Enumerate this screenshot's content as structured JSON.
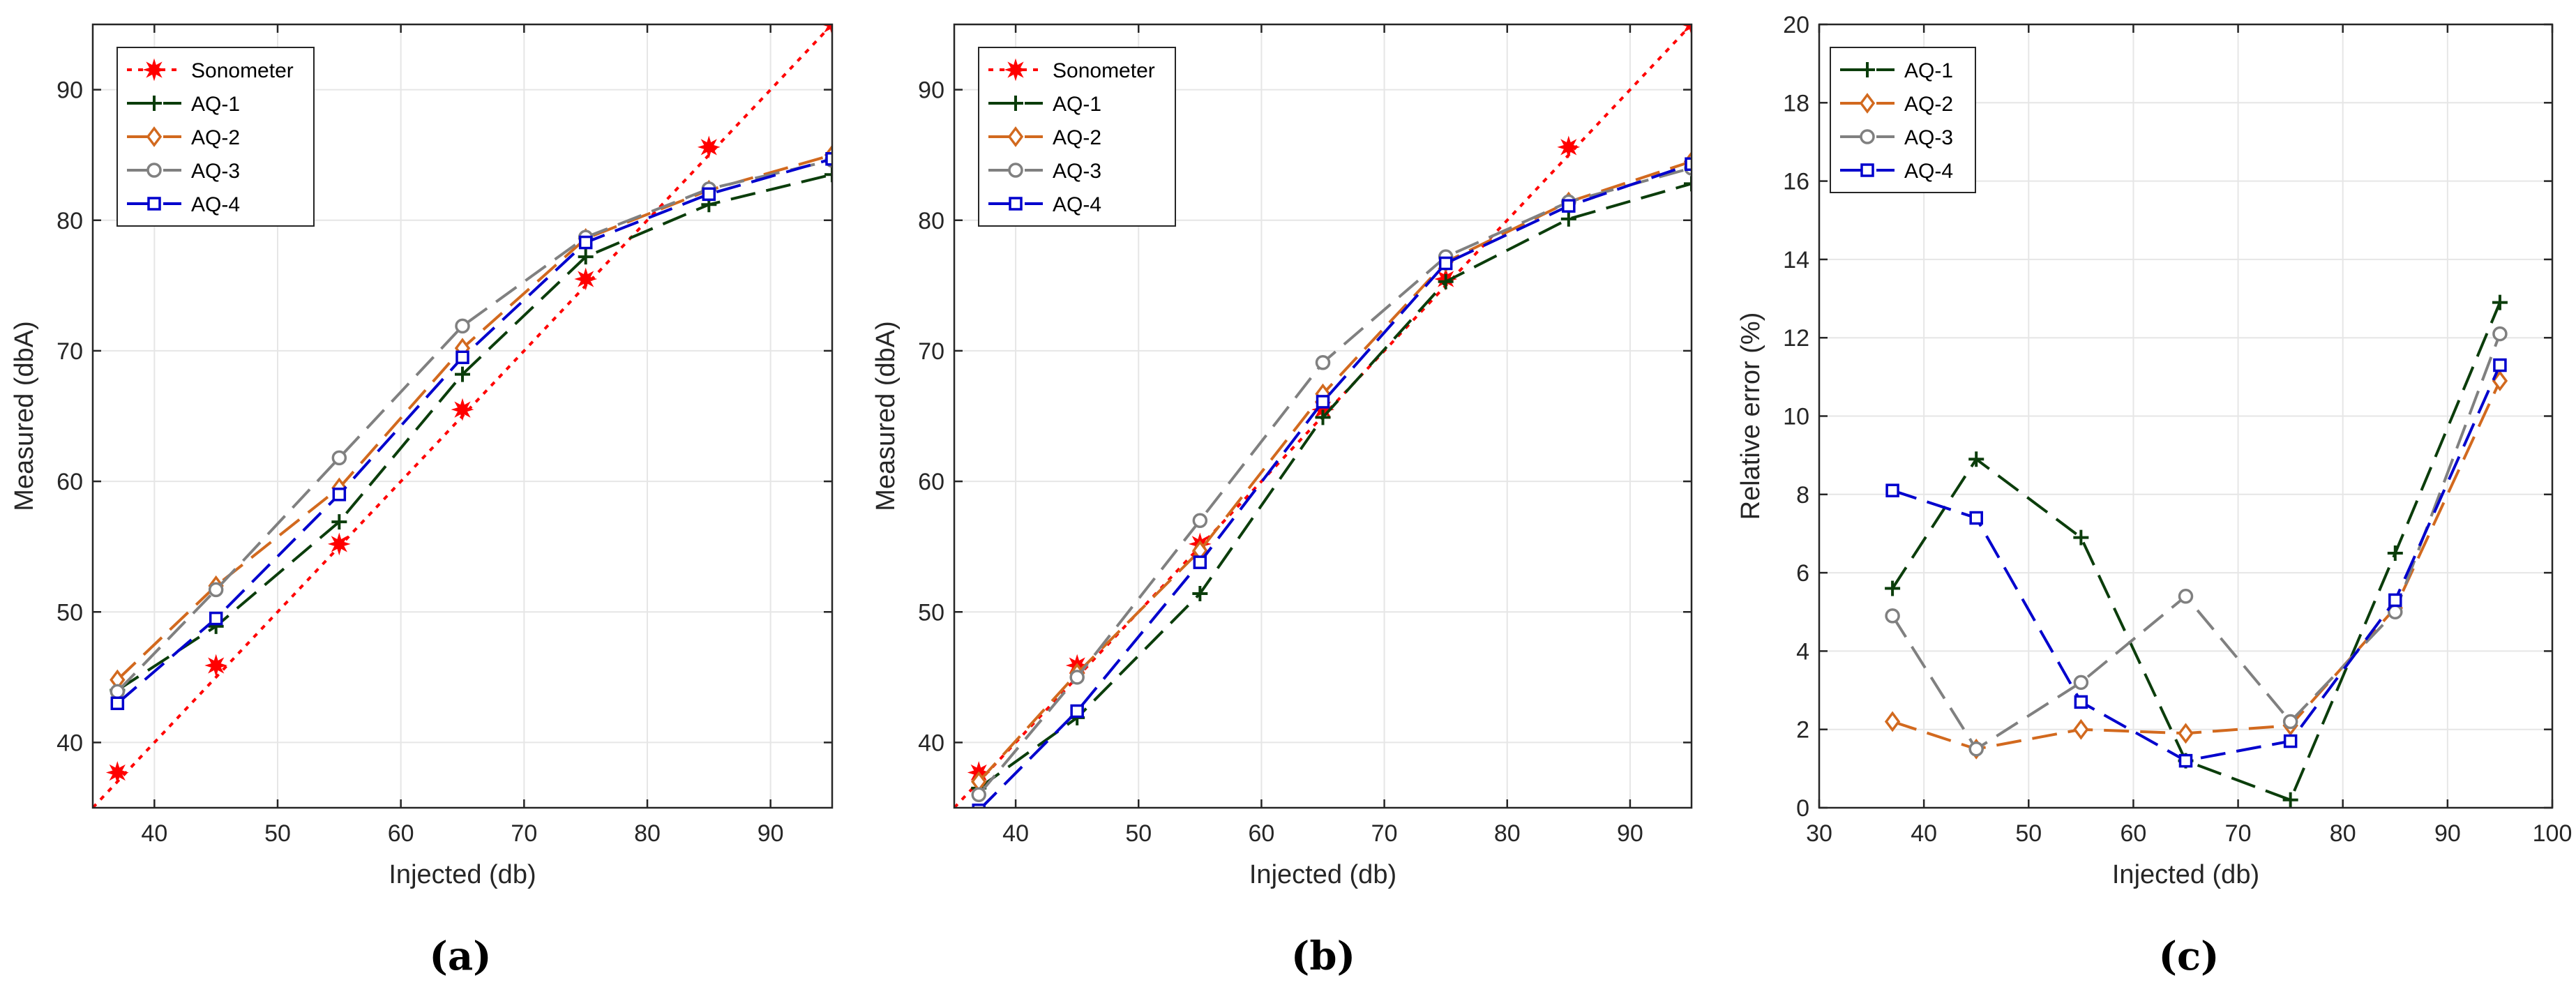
{
  "series_styles": {
    "Sonometer": {
      "color": "#ff0000",
      "dash": "dotted",
      "marker": "star"
    },
    "AQ-1": {
      "color": "#0b3d0b",
      "dash": "dashed",
      "marker": "plus"
    },
    "AQ-2": {
      "color": "#d2691e",
      "dash": "dashed",
      "marker": "diamond"
    },
    "AQ-3": {
      "color": "#808080",
      "dash": "dashed",
      "marker": "circle"
    },
    "AQ-4": {
      "color": "#0000cd",
      "dash": "dashed",
      "marker": "square"
    }
  },
  "chart_data": [
    {
      "type": "line",
      "caption": "(a)",
      "xlabel": "Injected (db)",
      "ylabel": "Measured (dbA)",
      "xlim": [
        35,
        95
      ],
      "ylim": [
        35,
        95
      ],
      "xticks": [
        40,
        50,
        60,
        70,
        80,
        90
      ],
      "yticks": [
        40,
        50,
        60,
        70,
        80,
        90
      ],
      "grid": true,
      "legend_position": "top-left",
      "series": [
        {
          "name": "Sonometer",
          "x": [
            37,
            45,
            55,
            65,
            75,
            85,
            95
          ],
          "y": [
            37.7,
            45.9,
            55.2,
            65.5,
            75.5,
            85.6,
            95.0
          ],
          "fit": true
        },
        {
          "name": "AQ-1",
          "x": [
            37,
            45,
            55,
            65,
            75,
            85,
            95
          ],
          "y": [
            44.0,
            48.9,
            56.9,
            68.2,
            77.2,
            81.2,
            83.5
          ]
        },
        {
          "name": "AQ-2",
          "x": [
            37,
            45,
            55,
            65,
            75,
            85,
            95
          ],
          "y": [
            44.8,
            52.0,
            59.5,
            70.2,
            78.6,
            82.3,
            85.0
          ]
        },
        {
          "name": "AQ-3",
          "x": [
            37,
            45,
            55,
            65,
            75,
            85,
            95
          ],
          "y": [
            43.9,
            51.7,
            61.8,
            71.9,
            78.7,
            82.4,
            84.6
          ]
        },
        {
          "name": "AQ-4",
          "x": [
            37,
            45,
            55,
            65,
            75,
            85,
            95
          ],
          "y": [
            43.0,
            49.5,
            59.0,
            69.5,
            78.3,
            82.0,
            84.7
          ]
        }
      ]
    },
    {
      "type": "line",
      "caption": "(b)",
      "xlabel": "Injected (db)",
      "ylabel": "Measured (dbA)",
      "xlim": [
        35,
        95
      ],
      "ylim": [
        35,
        95
      ],
      "xticks": [
        40,
        50,
        60,
        70,
        80,
        90
      ],
      "yticks": [
        40,
        50,
        60,
        70,
        80,
        90
      ],
      "grid": true,
      "legend_position": "top-left",
      "series": [
        {
          "name": "Sonometer",
          "x": [
            37,
            45,
            55,
            65,
            75,
            85,
            95
          ],
          "y": [
            37.7,
            45.9,
            55.2,
            65.5,
            75.5,
            85.6,
            95.0
          ],
          "fit": true
        },
        {
          "name": "AQ-1",
          "x": [
            37,
            45,
            55,
            65,
            75,
            85,
            95
          ],
          "y": [
            36.5,
            41.9,
            51.4,
            64.9,
            75.3,
            80.1,
            82.8
          ]
        },
        {
          "name": "AQ-2",
          "x": [
            37,
            45,
            55,
            65,
            75,
            85,
            95
          ],
          "y": [
            37.0,
            45.3,
            54.7,
            66.7,
            76.8,
            81.4,
            84.5
          ]
        },
        {
          "name": "AQ-3",
          "x": [
            37,
            45,
            55,
            65,
            75,
            85,
            95
          ],
          "y": [
            36.0,
            45.0,
            57.0,
            69.1,
            77.2,
            81.4,
            84.0
          ]
        },
        {
          "name": "AQ-4",
          "x": [
            37,
            45,
            55,
            65,
            75,
            85,
            95
          ],
          "y": [
            34.8,
            42.4,
            53.8,
            66.1,
            76.7,
            81.1,
            84.3
          ]
        }
      ]
    },
    {
      "type": "line",
      "caption": "(c)",
      "xlabel": "Injected (db)",
      "ylabel": "Relative error (%)",
      "xlim": [
        30,
        100
      ],
      "ylim": [
        0,
        20
      ],
      "xticks": [
        30,
        40,
        50,
        60,
        70,
        80,
        90,
        100
      ],
      "yticks": [
        0,
        2,
        4,
        6,
        8,
        10,
        12,
        14,
        16,
        18,
        20
      ],
      "grid": true,
      "legend_position": "top-left",
      "series": [
        {
          "name": "AQ-1",
          "x": [
            37,
            45,
            55,
            65,
            75,
            85,
            95
          ],
          "y": [
            5.6,
            8.9,
            6.9,
            1.2,
            0.2,
            6.5,
            12.9
          ]
        },
        {
          "name": "AQ-2",
          "x": [
            37,
            45,
            55,
            65,
            75,
            85,
            95
          ],
          "y": [
            2.2,
            1.5,
            2.0,
            1.9,
            2.1,
            5.1,
            10.9
          ]
        },
        {
          "name": "AQ-3",
          "x": [
            37,
            45,
            55,
            65,
            75,
            85,
            95
          ],
          "y": [
            4.9,
            1.5,
            3.2,
            5.4,
            2.2,
            5.0,
            12.1
          ]
        },
        {
          "name": "AQ-4",
          "x": [
            37,
            45,
            55,
            65,
            75,
            85,
            95
          ],
          "y": [
            8.1,
            7.4,
            2.7,
            1.2,
            1.7,
            5.3,
            11.3
          ]
        }
      ]
    }
  ]
}
